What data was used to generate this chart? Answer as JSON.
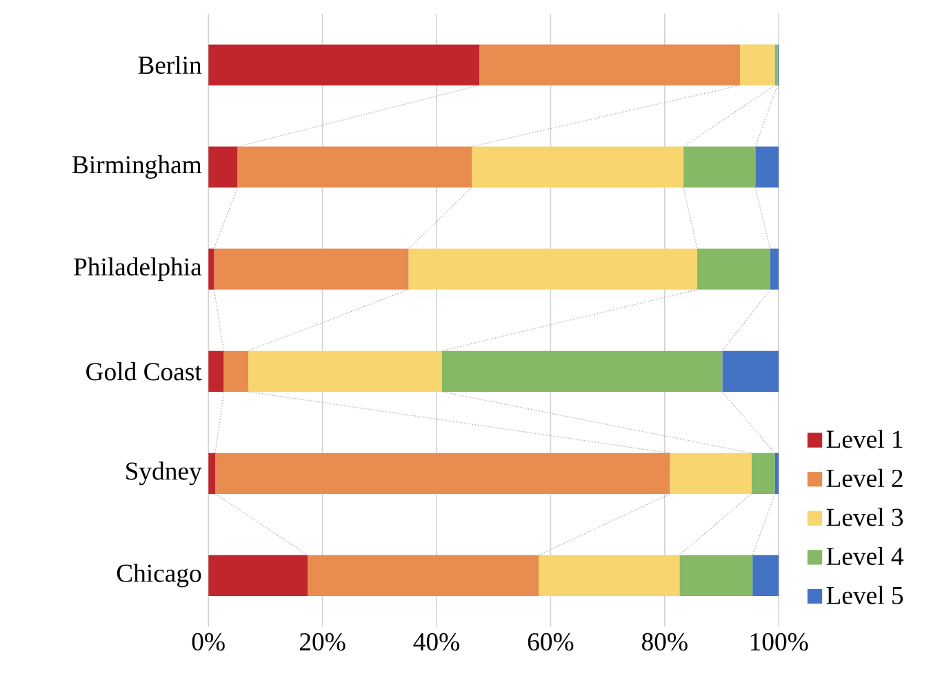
{
  "chart_data": {
    "type": "bar",
    "orientation": "horizontal",
    "stacked": true,
    "categories": [
      "Berlin",
      "Birmingham",
      "Philadelphia",
      "Gold Coast",
      "Sydney",
      "Chicago"
    ],
    "series": [
      {
        "name": "Level 1",
        "color": "#c0262b",
        "values": [
          47.5,
          5.1,
          1.0,
          2.7,
          1.2,
          17.4
        ]
      },
      {
        "name": "Level 2",
        "color": "#e98c4f",
        "values": [
          45.7,
          41.1,
          34.1,
          4.3,
          79.7,
          40.5
        ]
      },
      {
        "name": "Level 3",
        "color": "#f8d56f",
        "values": [
          6.1,
          37.1,
          50.6,
          33.9,
          14.3,
          24.7
        ]
      },
      {
        "name": "Level 4",
        "color": "#85b965",
        "values": [
          0.5,
          12.6,
          12.8,
          49.2,
          4.1,
          12.8
        ]
      },
      {
        "name": "Level 5",
        "color": "#4472c4",
        "values": [
          0.2,
          4.1,
          1.5,
          9.9,
          0.7,
          4.6
        ]
      }
    ],
    "xlim": [
      0,
      100
    ],
    "xticks": [
      {
        "value": 0,
        "label": "0%"
      },
      {
        "value": 20,
        "label": "20%"
      },
      {
        "value": 40,
        "label": "40%"
      },
      {
        "value": 60,
        "label": "60%"
      },
      {
        "value": 80,
        "label": "80%"
      },
      {
        "value": 100,
        "label": "100%"
      }
    ],
    "grid": "x",
    "legend": "right"
  }
}
